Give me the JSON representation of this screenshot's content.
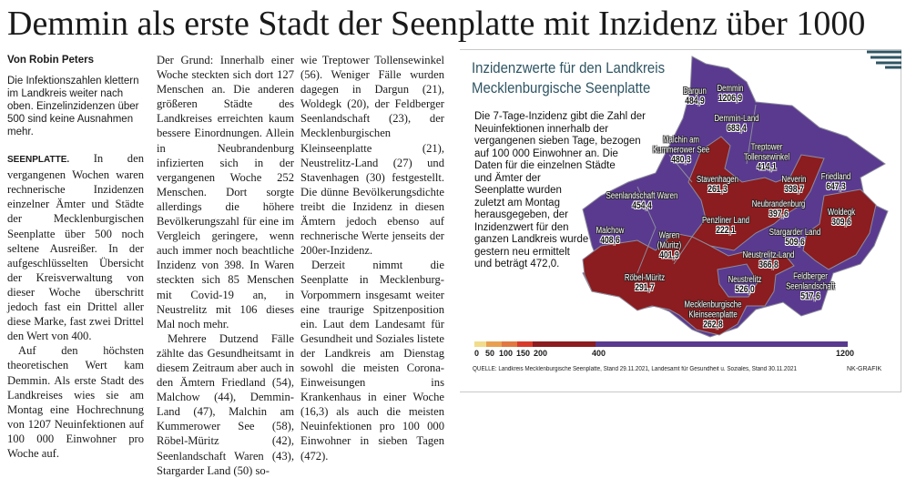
{
  "headline": "Demmin als erste Stadt der Seenplatte mit Inzidenz über 1000",
  "byline": "Von Robin Peters",
  "lede": "Die Infektionszahlen klettern im Landkreis weiter nach oben. Einzelinzidenzen über 500 sind keine Ausnahmen mehr.",
  "dateline": "SEENPLATTE.",
  "paragraphs": [
    "In den vergangenen Wochen waren rechnerische Inzidenzen einzelner Ämter und Städte der Mecklenburgischen Seenplatte über 500 noch seltene Ausreißer. In der aufgeschlüsselten Übersicht der Kreisverwaltung von dieser Woche überschritt jedoch fast ein Drittel aller diese Marke, fast zwei Drittel den Wert von 400.",
    "Auf den höchsten theoretischen Wert kam Demmin. Als erste Stadt des Landkreises wies sie am Montag eine Hochrechnung von 1207 Neuinfektionen auf 100 000 Einwohner pro Woche auf.",
    "Der Grund: Innerhalb einer Woche steckten sich dort 127 Menschen an. Die anderen größeren Städte des Landkreises erreichten kaum bessere Einordnungen. Allein in Neubrandenburg infizierten sich in der vergangenen Woche 252 Menschen. Dort sorgte allerdings die höhere Bevölkerungszahl für eine im Vergleich geringere, wenn auch immer noch beachtliche Inzidenz von 398. In Waren steckten sich 85 Menschen mit Covid-19 an, in Neustrelitz mit 106 dieses Mal noch mehr.",
    "Mehrere Dutzend Fälle zählte das Gesundheitsamt in diesem Zeitraum aber auch in den Ämtern Friedland (54), Malchow (44), Demmin-Land (47), Malchin am Kummerower See (58), Röbel-Müritz (42), Seenlandschaft Waren (43), Stargarder Land (50) sowie Treptower Tollensewinkel (56). Weniger Fälle wurden dagegen in Dargun (21), Woldegk (20), der Feldberger Seenlandschaft (23), der Mecklenburgischen Kleinseenplatte (21), Neustrelitz-Land (27) und Stavenhagen (30) festgestellt. Die dünne Bevölkerungsdichte treibt die Inzidenz in diesen Ämtern jedoch ebenso auf rechnerische Werte jenseits der 200er-Inzidenz.",
    "Derzeit nimmt die Seenplatte in Mecklenburg-Vorpommern insgesamt weiter eine traurige Spitzenposition ein. Laut dem Landesamt für Gesundheit und Soziales listete der Landkreis am Dienstag sowohl die meisten Corona-Einweisungen ins Krankenhaus in einer Woche (16,3) als auch die meisten Neuinfektionen pro 100 000 Einwohner in sieben Tagen (472)."
  ],
  "graphic": {
    "title_line1": "Inzidenzwerte für den Landkreis",
    "title_line2": "Mecklenburgische Seenplatte",
    "text": "Die 7-Tage-Inzidenz gibt die Zahl der Neuinfektionen innerhalb der vergangenen sieben Tage, bezogen auf 100 000 Einwohner an. Die Daten für die einzelnen Städte und Ämter der Seenplatte wurden zuletzt am Montag herausgegeben, der Inzidenzwert für den ganzen Landkreis wurde gestern neu ermittelt und beträgt 472,0.",
    "regions": [
      {
        "name": "Dargun",
        "value": "484,9"
      },
      {
        "name": "Demmin",
        "value": "1206,9"
      },
      {
        "name": "Demmin-Land",
        "value": "683,4"
      },
      {
        "name": "Malchin am Kummerower See",
        "value": "480,3"
      },
      {
        "name": "Treptower Tollensewinkel",
        "value": "414,1"
      },
      {
        "name": "Stavenhagen",
        "value": "261,3"
      },
      {
        "name": "Neverin",
        "value": "398,7"
      },
      {
        "name": "Friedland",
        "value": "647,3"
      },
      {
        "name": "Seenlandschaft Waren",
        "value": "454,4"
      },
      {
        "name": "Neubrandenburg",
        "value": "397,6"
      },
      {
        "name": "Woldegk",
        "value": "309,6"
      },
      {
        "name": "Penzliner Land",
        "value": "222,1"
      },
      {
        "name": "Stargarder Land",
        "value": "509,6"
      },
      {
        "name": "Malchow",
        "value": "408,6"
      },
      {
        "name": "Waren (Müritz)",
        "value": "401,9"
      },
      {
        "name": "Neustrelitz-Land",
        "value": "366,8"
      },
      {
        "name": "Röbel-Müritz",
        "value": "291,7"
      },
      {
        "name": "Neustrelitz",
        "value": "526,0"
      },
      {
        "name": "Feldberger Seenlandschaft",
        "value": "517,6"
      },
      {
        "name": "Mecklenburgische Kleinseenplatte",
        "value": "262,8"
      }
    ],
    "legend_ticks": [
      "0",
      "50",
      "100",
      "150",
      "200",
      "400",
      "1200"
    ],
    "colors": {
      "low": "#f2dc8a",
      "c50": "#e8a050",
      "c100": "#e07840",
      "c150": "#d83a2a",
      "red": "#8b1c1f",
      "purple": "#5a3a8f",
      "heading": "#2f5563"
    },
    "source": "QUELLE: Landkreis Mecklenburgische Seenplatte, Stand 29.11.2021, Landesamt für Gesundheit u. Soziales, Stand 30.11.2021",
    "credit": "NK-GRAFIK"
  }
}
